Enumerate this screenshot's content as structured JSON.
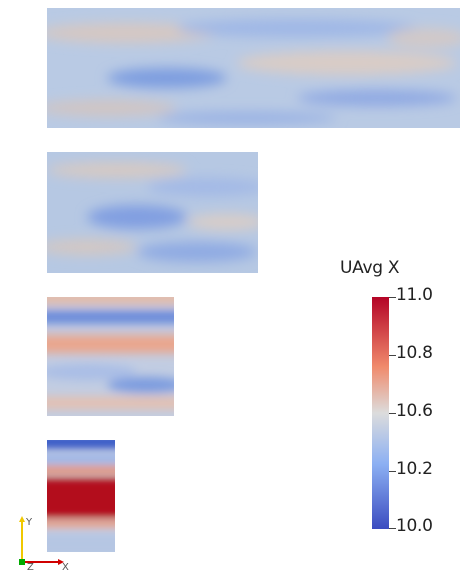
{
  "colorbar": {
    "title": "UAvg X",
    "labels": [
      "11.0",
      "10.8",
      "10.6",
      "10.2",
      "10.0"
    ],
    "colors": {
      "high": "#b40426",
      "mid": "#dcdcdc",
      "low": "#3b4cc0"
    }
  },
  "axes_triad": {
    "y_label": "Y",
    "z_label": "Z",
    "x_label": "X",
    "colors": {
      "y": "#f0c800",
      "z": "#00aa00",
      "x": "#d00000"
    }
  },
  "panels": [
    {
      "name": "panel-largest",
      "base": "#b7c9e3"
    },
    {
      "name": "panel-large",
      "base": "#b3c6e2"
    },
    {
      "name": "panel-medium",
      "base": "#c3cde0"
    },
    {
      "name": "panel-small",
      "base": "#c8d3e4"
    }
  ]
}
